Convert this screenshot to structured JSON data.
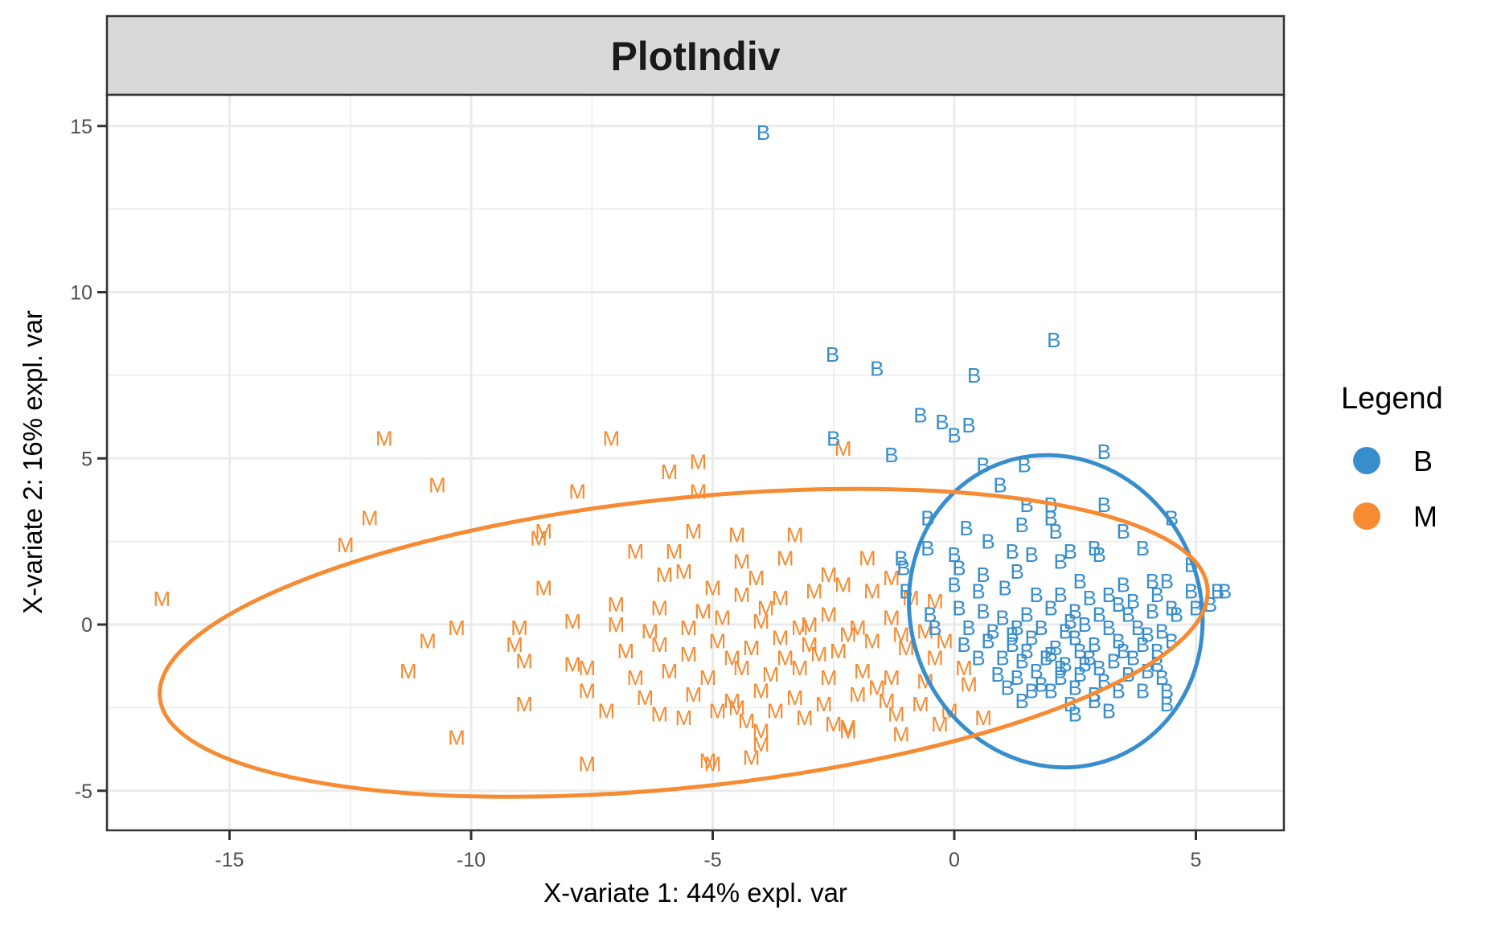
{
  "chart_data": {
    "type": "scatter",
    "title": "PlotIndiv",
    "xlabel": "X-variate 1: 44% expl. var",
    "ylabel": "X-variate 2: 16% expl. var",
    "xlim": [
      -18.2,
      6.8
    ],
    "ylim": [
      -6.15,
      16.0
    ],
    "x_ticks": [
      -15,
      -10,
      -5,
      0,
      5
    ],
    "x_tick_labels": [
      "-15",
      "-10",
      "-5",
      "0",
      "5"
    ],
    "y_ticks": [
      -5,
      0,
      5,
      10,
      15
    ],
    "y_tick_labels": [
      "-5",
      "0",
      "5",
      "10",
      "15"
    ],
    "grid": true,
    "legend": {
      "title": "Legend",
      "position": "right",
      "entries": [
        {
          "label": "B",
          "color": "#388ECC"
        },
        {
          "label": "M",
          "color": "#F68B33"
        }
      ]
    },
    "marker": "text-label",
    "ellipses": [
      {
        "group": "B",
        "color": "#388ECC",
        "center": [
          2.1,
          0.4
        ],
        "rx": 3.0,
        "ry": 4.75,
        "angle_deg": -22
      },
      {
        "group": "M",
        "color": "#F68B33",
        "center": [
          -5.6,
          -0.55
        ],
        "rx": 10.9,
        "ry": 4.35,
        "angle_deg": -6
      }
    ],
    "series": [
      {
        "name": "B",
        "color": "#388ECC",
        "points": [
          [
            -3.95,
            14.8
          ],
          [
            2.06,
            8.56
          ],
          [
            -2.52,
            8.13
          ],
          [
            -1.6,
            7.7
          ],
          [
            0.41,
            7.5
          ],
          [
            -0.7,
            6.3
          ],
          [
            -0.25,
            6.1
          ],
          [
            0.3,
            6.0
          ],
          [
            0.0,
            5.7
          ],
          [
            -2.5,
            5.6
          ],
          [
            -1.3,
            5.1
          ],
          [
            0.6,
            4.8
          ],
          [
            1.45,
            4.8
          ],
          [
            3.1,
            5.2
          ],
          [
            0.95,
            4.2
          ],
          [
            1.5,
            3.6
          ],
          [
            2.0,
            3.6
          ],
          [
            3.1,
            3.6
          ],
          [
            4.5,
            3.2
          ],
          [
            -0.55,
            3.2
          ],
          [
            0.25,
            2.9
          ],
          [
            1.4,
            3.0
          ],
          [
            2.0,
            3.2
          ],
          [
            2.1,
            2.8
          ],
          [
            3.5,
            2.8
          ],
          [
            -0.55,
            2.3
          ],
          [
            0.0,
            2.1
          ],
          [
            0.7,
            2.5
          ],
          [
            1.2,
            2.2
          ],
          [
            1.6,
            2.1
          ],
          [
            2.4,
            2.2
          ],
          [
            2.9,
            2.3
          ],
          [
            3.0,
            2.1
          ],
          [
            3.9,
            2.3
          ],
          [
            4.9,
            1.8
          ],
          [
            -1.1,
            2.0
          ],
          [
            -1.05,
            1.7
          ],
          [
            0.1,
            1.7
          ],
          [
            0.6,
            1.5
          ],
          [
            1.3,
            1.6
          ],
          [
            2.2,
            1.9
          ],
          [
            2.6,
            1.3
          ],
          [
            3.5,
            1.2
          ],
          [
            4.1,
            1.3
          ],
          [
            4.4,
            1.3
          ],
          [
            4.9,
            1.0
          ],
          [
            5.45,
            1.0
          ],
          [
            5.6,
            1.0
          ],
          [
            5.3,
            0.6
          ],
          [
            -1.0,
            1.0
          ],
          [
            0.0,
            1.2
          ],
          [
            0.5,
            1.0
          ],
          [
            1.05,
            1.1
          ],
          [
            1.7,
            0.9
          ],
          [
            2.2,
            0.9
          ],
          [
            2.8,
            0.8
          ],
          [
            3.2,
            0.9
          ],
          [
            3.7,
            0.7
          ],
          [
            4.2,
            0.9
          ],
          [
            4.5,
            0.5
          ],
          [
            5.0,
            0.5
          ],
          [
            -0.5,
            0.3
          ],
          [
            0.1,
            0.5
          ],
          [
            0.6,
            0.4
          ],
          [
            1.0,
            0.2
          ],
          [
            1.5,
            0.3
          ],
          [
            2.0,
            0.5
          ],
          [
            2.5,
            0.4
          ],
          [
            3.0,
            0.3
          ],
          [
            3.6,
            0.3
          ],
          [
            4.1,
            0.4
          ],
          [
            4.6,
            0.3
          ],
          [
            -0.4,
            -0.1
          ],
          [
            0.3,
            -0.1
          ],
          [
            0.8,
            -0.2
          ],
          [
            1.3,
            -0.1
          ],
          [
            1.8,
            -0.1
          ],
          [
            2.3,
            -0.2
          ],
          [
            2.7,
            0.0
          ],
          [
            3.2,
            -0.1
          ],
          [
            3.8,
            -0.1
          ],
          [
            4.3,
            -0.2
          ],
          [
            4.5,
            -0.5
          ],
          [
            0.2,
            -0.6
          ],
          [
            0.7,
            -0.5
          ],
          [
            1.2,
            -0.6
          ],
          [
            1.6,
            -0.4
          ],
          [
            2.1,
            -0.7
          ],
          [
            2.5,
            -0.4
          ],
          [
            2.9,
            -0.6
          ],
          [
            3.4,
            -0.5
          ],
          [
            3.9,
            -0.6
          ],
          [
            4.2,
            -0.8
          ],
          [
            0.5,
            -1.0
          ],
          [
            1.0,
            -1.0
          ],
          [
            1.4,
            -1.1
          ],
          [
            1.9,
            -1.0
          ],
          [
            2.3,
            -1.2
          ],
          [
            2.8,
            -1.0
          ],
          [
            3.3,
            -1.1
          ],
          [
            3.7,
            -1.0
          ],
          [
            4.2,
            -1.2
          ],
          [
            0.9,
            -1.5
          ],
          [
            1.3,
            -1.6
          ],
          [
            1.7,
            -1.4
          ],
          [
            2.2,
            -1.6
          ],
          [
            2.6,
            -1.5
          ],
          [
            3.1,
            -1.7
          ],
          [
            3.6,
            -1.5
          ],
          [
            4.0,
            -1.4
          ],
          [
            4.3,
            -1.6
          ],
          [
            1.1,
            -1.9
          ],
          [
            1.6,
            -2.0
          ],
          [
            2.0,
            -2.0
          ],
          [
            2.5,
            -1.9
          ],
          [
            2.9,
            -2.1
          ],
          [
            3.4,
            -2.0
          ],
          [
            3.9,
            -2.0
          ],
          [
            4.4,
            -2.0
          ],
          [
            1.4,
            -2.3
          ],
          [
            2.4,
            -2.4
          ],
          [
            2.9,
            -2.3
          ],
          [
            3.2,
            -2.6
          ],
          [
            4.4,
            -2.4
          ],
          [
            2.5,
            -2.7
          ],
          [
            1.5,
            -0.8
          ],
          [
            2.0,
            -0.9
          ],
          [
            2.6,
            -0.8
          ],
          [
            3.0,
            -1.3
          ],
          [
            2.2,
            -1.3
          ],
          [
            1.8,
            -1.8
          ],
          [
            2.7,
            -1.2
          ],
          [
            3.5,
            -0.8
          ],
          [
            1.2,
            -0.3
          ],
          [
            2.4,
            0.1
          ],
          [
            3.4,
            0.6
          ],
          [
            4.0,
            -0.3
          ]
        ]
      },
      {
        "name": "M",
        "color": "#F68B33",
        "points": [
          [
            -16.4,
            0.77
          ],
          [
            -11.8,
            5.6
          ],
          [
            -12.1,
            3.2
          ],
          [
            -12.6,
            2.4
          ],
          [
            -10.7,
            4.2
          ],
          [
            -10.3,
            -0.1
          ],
          [
            -10.9,
            -0.5
          ],
          [
            -10.3,
            -3.4
          ],
          [
            -11.3,
            -1.4
          ],
          [
            -7.1,
            5.6
          ],
          [
            -2.3,
            5.3
          ],
          [
            -5.3,
            4.9
          ],
          [
            -5.9,
            4.6
          ],
          [
            -5.3,
            4.0
          ],
          [
            -7.8,
            4.0
          ],
          [
            -8.5,
            2.8
          ],
          [
            -8.6,
            2.6
          ],
          [
            -5.4,
            2.8
          ],
          [
            -4.5,
            2.7
          ],
          [
            -3.3,
            2.7
          ],
          [
            -6.6,
            2.2
          ],
          [
            -5.8,
            2.2
          ],
          [
            -5.6,
            1.6
          ],
          [
            -4.4,
            1.9
          ],
          [
            -4.1,
            1.4
          ],
          [
            -3.5,
            2.0
          ],
          [
            -1.8,
            2.0
          ],
          [
            -8.5,
            1.1
          ],
          [
            -7.0,
            0.6
          ],
          [
            -6.1,
            0.5
          ],
          [
            -5.2,
            0.4
          ],
          [
            -4.4,
            0.9
          ],
          [
            -3.6,
            0.8
          ],
          [
            -2.9,
            1.0
          ],
          [
            -2.3,
            1.2
          ],
          [
            -1.7,
            1.0
          ],
          [
            -0.9,
            0.8
          ],
          [
            -7.9,
            0.1
          ],
          [
            -7.0,
            0.0
          ],
          [
            -6.3,
            -0.2
          ],
          [
            -5.5,
            -0.1
          ],
          [
            -4.8,
            0.2
          ],
          [
            -4.0,
            0.1
          ],
          [
            -3.2,
            -0.1
          ],
          [
            -2.6,
            0.3
          ],
          [
            -2.0,
            -0.1
          ],
          [
            -1.3,
            0.2
          ],
          [
            -0.6,
            -0.2
          ],
          [
            -9.0,
            -0.1
          ],
          [
            -9.1,
            -0.6
          ],
          [
            -8.9,
            -1.1
          ],
          [
            -7.9,
            -1.2
          ],
          [
            -7.6,
            -1.3
          ],
          [
            -6.8,
            -0.8
          ],
          [
            -6.1,
            -0.6
          ],
          [
            -5.5,
            -0.9
          ],
          [
            -4.9,
            -0.5
          ],
          [
            -4.2,
            -0.7
          ],
          [
            -3.6,
            -0.4
          ],
          [
            -3.0,
            -0.6
          ],
          [
            -2.4,
            -0.8
          ],
          [
            -1.7,
            -0.5
          ],
          [
            -1.0,
            -0.7
          ],
          [
            -0.4,
            -1.0
          ],
          [
            0.2,
            -1.3
          ],
          [
            -6.6,
            -1.6
          ],
          [
            -5.9,
            -1.4
          ],
          [
            -5.1,
            -1.6
          ],
          [
            -4.4,
            -1.3
          ],
          [
            -3.8,
            -1.5
          ],
          [
            -3.2,
            -1.3
          ],
          [
            -2.6,
            -1.6
          ],
          [
            -1.9,
            -1.4
          ],
          [
            -1.3,
            -1.6
          ],
          [
            -0.6,
            -1.7
          ],
          [
            0.3,
            -1.8
          ],
          [
            -7.6,
            -2.0
          ],
          [
            -6.4,
            -2.2
          ],
          [
            -5.4,
            -2.1
          ],
          [
            -4.6,
            -2.3
          ],
          [
            -4.0,
            -2.0
          ],
          [
            -3.3,
            -2.2
          ],
          [
            -2.7,
            -2.4
          ],
          [
            -2.0,
            -2.1
          ],
          [
            -1.4,
            -2.3
          ],
          [
            -0.7,
            -2.4
          ],
          [
            -0.1,
            -2.6
          ],
          [
            -8.9,
            -2.4
          ],
          [
            -7.2,
            -2.6
          ],
          [
            -6.1,
            -2.7
          ],
          [
            -5.6,
            -2.8
          ],
          [
            -4.9,
            -2.6
          ],
          [
            -4.3,
            -2.9
          ],
          [
            -3.7,
            -2.6
          ],
          [
            -3.1,
            -2.8
          ],
          [
            -2.5,
            -3.0
          ],
          [
            -2.2,
            -3.1
          ],
          [
            -1.2,
            -2.7
          ],
          [
            -0.3,
            -3.0
          ],
          [
            0.6,
            -2.8
          ],
          [
            -4.0,
            -3.2
          ],
          [
            -4.0,
            -3.6
          ],
          [
            -2.2,
            -3.2
          ],
          [
            -1.1,
            -3.3
          ],
          [
            -7.6,
            -4.2
          ],
          [
            -5.1,
            -4.1
          ],
          [
            -5.0,
            -4.2
          ],
          [
            -4.2,
            -4.0
          ],
          [
            -1.6,
            -1.9
          ],
          [
            -2.8,
            -0.9
          ],
          [
            -3.5,
            -1.0
          ],
          [
            -4.6,
            -1.0
          ],
          [
            -2.2,
            -0.3
          ],
          [
            -1.1,
            -0.3
          ],
          [
            -0.2,
            -0.5
          ],
          [
            -5.0,
            1.1
          ],
          [
            -6.0,
            1.5
          ],
          [
            -3.9,
            0.5
          ],
          [
            -2.6,
            1.5
          ],
          [
            -1.3,
            1.4
          ],
          [
            -0.4,
            0.7
          ],
          [
            -3.0,
            0.0
          ],
          [
            -4.5,
            -2.5
          ]
        ]
      }
    ]
  }
}
